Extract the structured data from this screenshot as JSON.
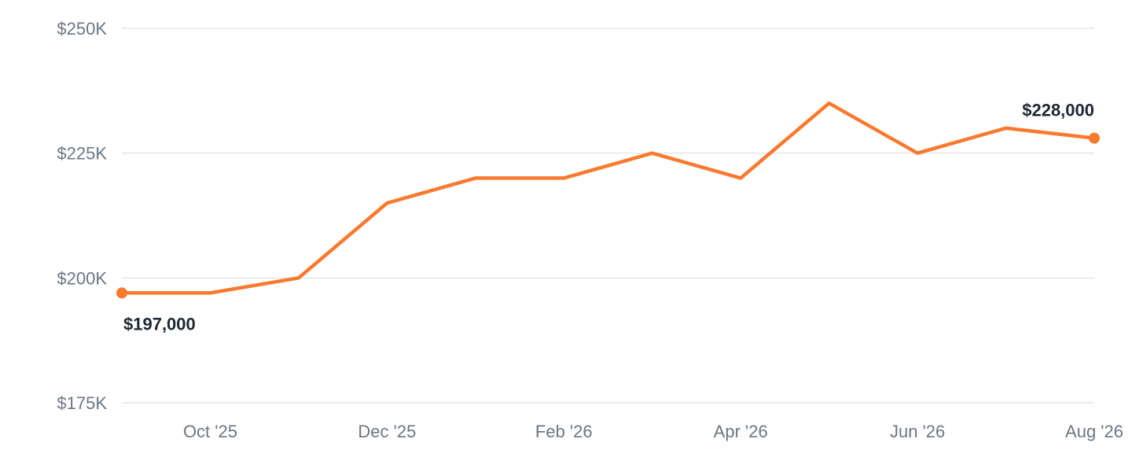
{
  "colors": {
    "line": "#f97a2e",
    "grid": "#e3e6ea",
    "tick_text": "#6b7685",
    "label_text": "#1b2733"
  },
  "chart_data": {
    "type": "line",
    "title": "",
    "xlabel": "",
    "ylabel": "",
    "grid": true,
    "legend": "none",
    "x": [
      "2025-09",
      "2025-10",
      "2025-11",
      "2025-12",
      "2026-01",
      "2026-02",
      "2026-03",
      "2026-04",
      "2026-05",
      "2026-06",
      "2026-07",
      "2026-08"
    ],
    "series": [
      {
        "values": [
          197000,
          197000,
          200000,
          215000,
          220000,
          220000,
          225000,
          220000,
          235000,
          225000,
          230000,
          228000
        ]
      }
    ],
    "ylim": [
      175000,
      250000
    ],
    "y_ticks": [
      {
        "value": 250000,
        "label": "$250K"
      },
      {
        "value": 225000,
        "label": "$225K"
      },
      {
        "value": 200000,
        "label": "$200K"
      },
      {
        "value": 175000,
        "label": "$175K"
      }
    ],
    "x_ticks": [
      {
        "x": "2025-10",
        "label": "Oct '25"
      },
      {
        "x": "2025-12",
        "label": "Dec '25"
      },
      {
        "x": "2026-02",
        "label": "Feb '26"
      },
      {
        "x": "2026-04",
        "label": "Apr '26"
      },
      {
        "x": "2026-06",
        "label": "Jun '26"
      },
      {
        "x": "2026-08",
        "label": "Aug '26"
      }
    ],
    "annotations": {
      "start_label": "$197,000",
      "end_label": "$228,000"
    }
  }
}
